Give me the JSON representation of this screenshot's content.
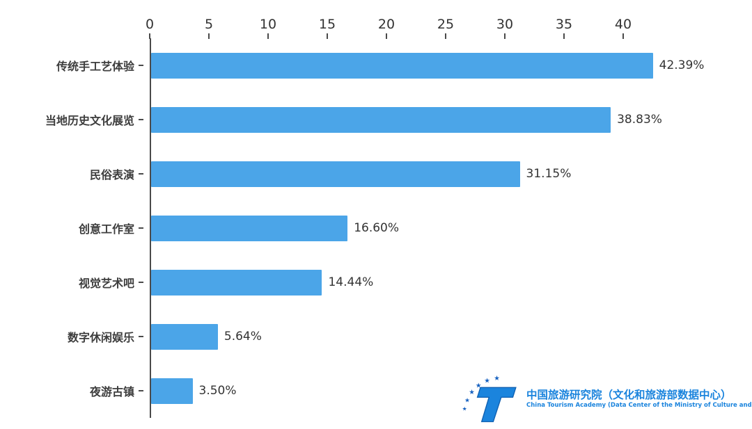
{
  "chart_data": {
    "type": "bar",
    "orientation": "horizontal",
    "title": "",
    "xlabel": "",
    "ylabel": "",
    "categories": [
      "传统手工艺体验",
      "当地历史文化展览",
      "民俗表演",
      "创意工作室",
      "视觉艺术吧",
      "数字休闲娱乐",
      "夜游古镇"
    ],
    "values": [
      42.39,
      38.83,
      31.15,
      16.6,
      14.44,
      5.64,
      3.5
    ],
    "value_labels": [
      "42.39%",
      "38.83%",
      "31.15%",
      "16.60%",
      "14.44%",
      "5.64%",
      "3.50%"
    ],
    "x_ticks": [
      0,
      5,
      10,
      15,
      20,
      25,
      30,
      35,
      40
    ],
    "xlim": [
      0,
      43
    ],
    "grid": false,
    "legend": "none",
    "bar_color": "#4BA5E8",
    "axis_color": "#4a4a4a",
    "label_color": "#333333"
  },
  "footer": {
    "logo_title": "中国旅游研究院（文化和旅游部数据中心）",
    "logo_subtitle": "China Tourism Academy (Data Center of the Ministry of Culture and Tourism)",
    "logo_color": "#1b84dd"
  }
}
